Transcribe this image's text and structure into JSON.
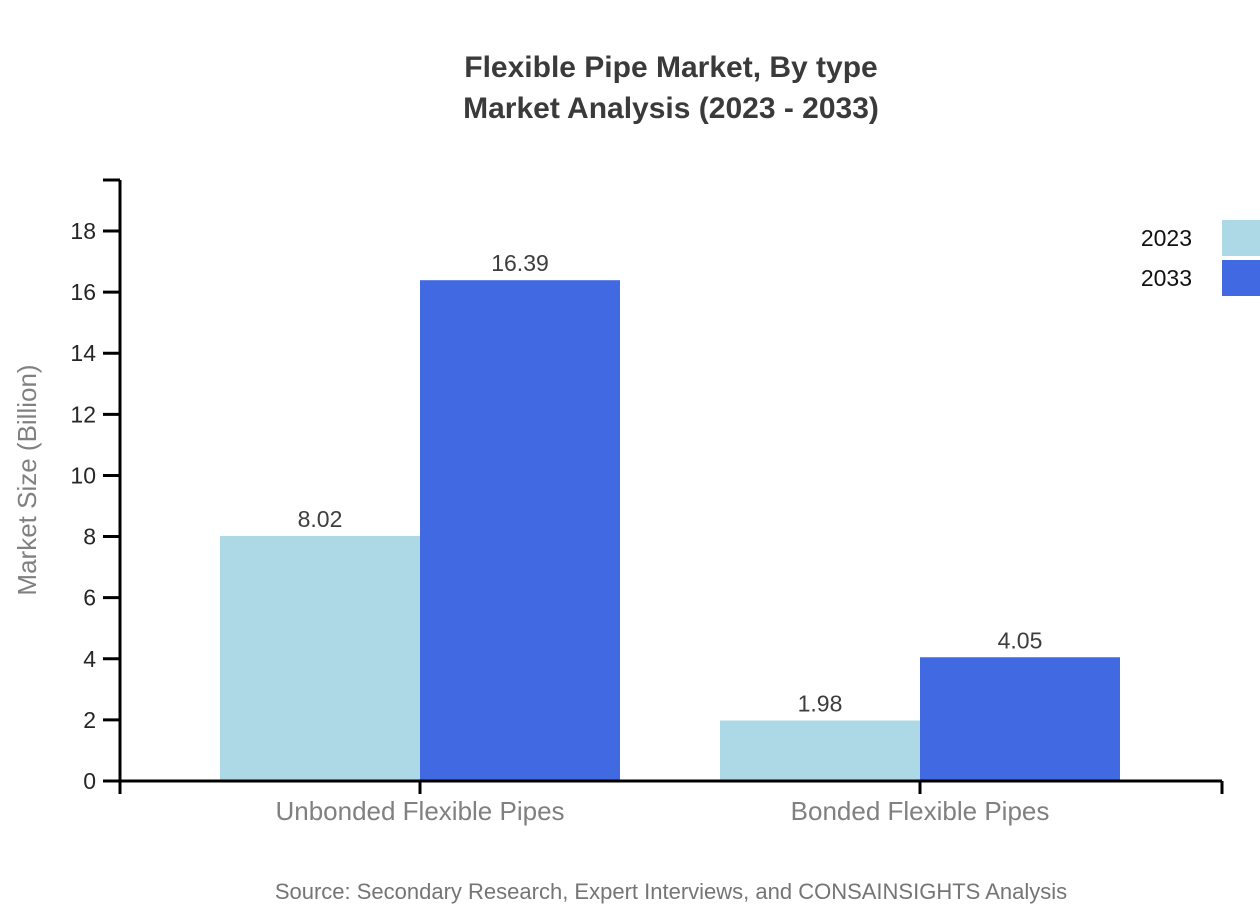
{
  "title": {
    "line1": "Flexible Pipe Market, By type",
    "line2": "Market Analysis (2023 - 2033)"
  },
  "source_note": "Source: Secondary Research, Expert Interviews, and CONSAINSIGHTS Analysis",
  "chart_data": {
    "type": "bar",
    "title": "Flexible Pipe Market, By type — Market Analysis (2023 - 2033)",
    "categories": [
      "Unbonded Flexible Pipes",
      "Bonded Flexible Pipes"
    ],
    "series": [
      {
        "name": "2023",
        "color": "#add8e6",
        "values": [
          8.02,
          1.98
        ]
      },
      {
        "name": "2033",
        "color": "#4169e1",
        "values": [
          16.39,
          4.05
        ]
      }
    ],
    "xlabel": "",
    "ylabel": "Market Size (Billion)",
    "ylim": [
      0,
      19.7
    ],
    "yticks": [
      0,
      2,
      4,
      6,
      8,
      10,
      12,
      14,
      16,
      18
    ],
    "grid": false,
    "legend_position": "top-right",
    "data_labels": true,
    "value_label_format": "0.00"
  },
  "colors": {
    "background": "#ffffff",
    "axis": "#000000",
    "tick_label": "#262626",
    "category_label": "#808080",
    "axis_label": "#808080",
    "value_label": "#3d3d3d",
    "title_text": "#3a3a3a",
    "legend_text": "#111111",
    "source_text": "#757575"
  }
}
